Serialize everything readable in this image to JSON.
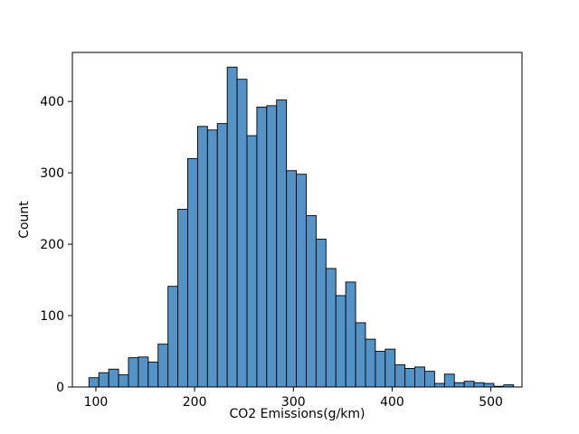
{
  "figure": {
    "background_color": "#ffffff",
    "description": "Histogram of vehicle CO2 emissions"
  },
  "chart_data": {
    "type": "bar",
    "subtype": "histogram",
    "title": "",
    "xlabel": "CO2 Emissions(g/km)",
    "ylabel": "Count",
    "bar_color": "#5593c6",
    "bar_edge_color": "#000000",
    "axis_color": "#000000",
    "grid": false,
    "legend": false,
    "bin_start": 93,
    "bin_width": 10,
    "counts": [
      13,
      20,
      25,
      17,
      41,
      42,
      35,
      60,
      141,
      249,
      320,
      365,
      360,
      369,
      448,
      431,
      352,
      392,
      394,
      402,
      303,
      298,
      240,
      207,
      166,
      128,
      147,
      90,
      67,
      50,
      53,
      31,
      26,
      28,
      22,
      5,
      18,
      6,
      8,
      6,
      5,
      1,
      3
    ],
    "x_ticks": [
      100,
      200,
      300,
      400,
      500
    ],
    "y_ticks": [
      0,
      100,
      200,
      300,
      400
    ],
    "xlim": [
      76.2,
      531.5
    ],
    "ylim": [
      0,
      468.6
    ]
  }
}
